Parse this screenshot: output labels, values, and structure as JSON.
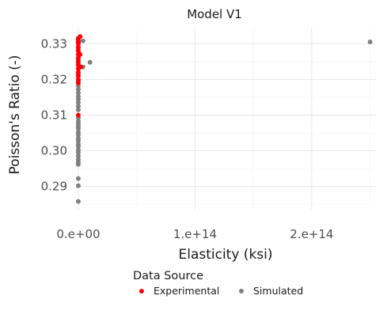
{
  "chart_data": {
    "type": "scatter",
    "title": "Model V1",
    "xlabel": "Elasticity (ksi)",
    "ylabel": "Poisson's Ratio (-)",
    "xlim": [
      -2000000000000.0,
      255000000000000.0
    ],
    "ylim": [
      0.2835,
      0.3345
    ],
    "x_ticks": [
      0,
      100000000000000.0,
      200000000000000.0
    ],
    "x_tick_labels": [
      "0.e+00",
      "1.e+14",
      "2.e+14"
    ],
    "y_ticks": [
      0.29,
      0.3,
      0.31,
      0.32,
      0.33
    ],
    "y_tick_labels": [
      "0.29",
      "0.30",
      "0.31",
      "0.32",
      "0.33"
    ],
    "grid": true,
    "legend": {
      "title": "Data Source",
      "position": "bottom"
    },
    "series": [
      {
        "name": "Simulated",
        "color": "#808080",
        "points": [
          {
            "x": 0,
            "y": 0.2858
          },
          {
            "x": 0,
            "y": 0.2902
          },
          {
            "x": 0,
            "y": 0.2922
          },
          {
            "x": 0,
            "y": 0.2962
          },
          {
            "x": 0,
            "y": 0.2968
          },
          {
            "x": 0,
            "y": 0.2975
          },
          {
            "x": 0,
            "y": 0.2985
          },
          {
            "x": 0,
            "y": 0.2995
          },
          {
            "x": 0,
            "y": 0.3002
          },
          {
            "x": 0,
            "y": 0.3012
          },
          {
            "x": 0,
            "y": 0.3018
          },
          {
            "x": 0,
            "y": 0.3028
          },
          {
            "x": 0,
            "y": 0.3035
          },
          {
            "x": 0,
            "y": 0.3045
          },
          {
            "x": 0,
            "y": 0.3052
          },
          {
            "x": 0,
            "y": 0.3062
          },
          {
            "x": 0,
            "y": 0.3068
          },
          {
            "x": 0,
            "y": 0.3075
          },
          {
            "x": 0,
            "y": 0.3082
          },
          {
            "x": 0,
            "y": 0.3092
          },
          {
            "x": 0,
            "y": 0.3115
          },
          {
            "x": 0,
            "y": 0.3125
          },
          {
            "x": 0,
            "y": 0.3135
          },
          {
            "x": 0,
            "y": 0.3145
          },
          {
            "x": 0,
            "y": 0.3152
          },
          {
            "x": 0,
            "y": 0.3162
          },
          {
            "x": 0,
            "y": 0.3172
          },
          {
            "x": 0,
            "y": 0.3182
          },
          {
            "x": 0,
            "y": 0.3195
          },
          {
            "x": 0,
            "y": 0.3215
          },
          {
            "x": 0,
            "y": 0.3245
          },
          {
            "x": 0,
            "y": 0.3255
          },
          {
            "x": 0,
            "y": 0.3285
          },
          {
            "x": 0,
            "y": 0.3305
          },
          {
            "x": 4000000000000.0,
            "y": 0.3235
          },
          {
            "x": 4000000000000.0,
            "y": 0.3308
          },
          {
            "x": 10000000000000.0,
            "y": 0.3248
          },
          {
            "x": 250000000000000.0,
            "y": 0.3305
          }
        ]
      },
      {
        "name": "Experimental",
        "color": "#ff0000",
        "points": [
          {
            "x": 0,
            "y": 0.31
          },
          {
            "x": 0,
            "y": 0.319
          },
          {
            "x": 0,
            "y": 0.32
          },
          {
            "x": 0,
            "y": 0.321
          },
          {
            "x": 0,
            "y": 0.322
          },
          {
            "x": 0,
            "y": 0.323
          },
          {
            "x": 0,
            "y": 0.324
          },
          {
            "x": 0,
            "y": 0.325
          },
          {
            "x": 0,
            "y": 0.326
          },
          {
            "x": 0,
            "y": 0.327
          },
          {
            "x": 0,
            "y": 0.328
          },
          {
            "x": 0,
            "y": 0.329
          },
          {
            "x": 0,
            "y": 0.33
          },
          {
            "x": 0,
            "y": 0.3305
          },
          {
            "x": 0,
            "y": 0.331
          },
          {
            "x": 0,
            "y": 0.3315
          },
          {
            "x": 1500000000000.0,
            "y": 0.332
          },
          {
            "x": 1500000000000.0,
            "y": 0.327
          },
          {
            "x": 2000000000000.0,
            "y": 0.3235
          }
        ]
      }
    ]
  }
}
